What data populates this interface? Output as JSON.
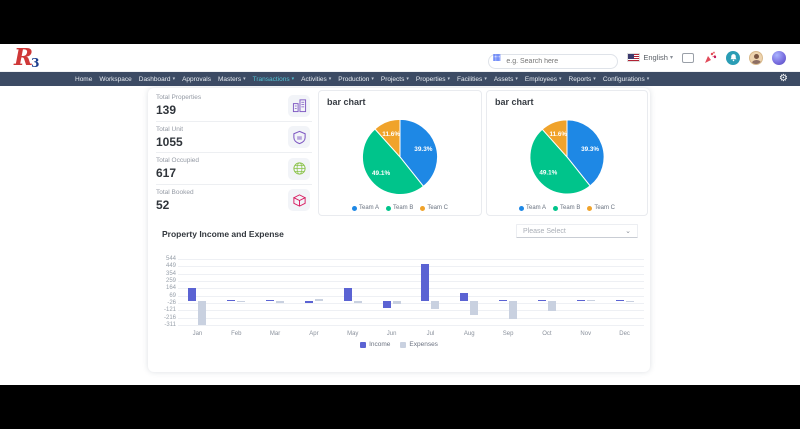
{
  "app": {
    "logo_r": "R",
    "logo_3": "3"
  },
  "header": {
    "search_placeholder": "e.g. Search here",
    "language": "English"
  },
  "nav": {
    "items": [
      {
        "label": "Home",
        "caret": false,
        "active": false
      },
      {
        "label": "Workspace",
        "caret": false,
        "active": false
      },
      {
        "label": "Dashboard",
        "caret": true,
        "active": false
      },
      {
        "label": "Approvals",
        "caret": false,
        "active": false
      },
      {
        "label": "Masters",
        "caret": true,
        "active": false
      },
      {
        "label": "Transactions",
        "caret": true,
        "active": true
      },
      {
        "label": "Activities",
        "caret": true,
        "active": false
      },
      {
        "label": "Production",
        "caret": true,
        "active": false
      },
      {
        "label": "Projects",
        "caret": true,
        "active": false
      },
      {
        "label": "Properties",
        "caret": true,
        "active": false
      },
      {
        "label": "Facilities",
        "caret": true,
        "active": false
      },
      {
        "label": "Assets",
        "caret": true,
        "active": false
      },
      {
        "label": "Employees",
        "caret": true,
        "active": false
      },
      {
        "label": "Reports",
        "caret": true,
        "active": false
      },
      {
        "label": "Configurations",
        "caret": true,
        "active": false
      }
    ]
  },
  "stats": [
    {
      "label": "Total Properties",
      "value": "139",
      "icon": "building-icon",
      "color": "#7e57c2"
    },
    {
      "label": "Total Unit",
      "value": "1055",
      "icon": "units-icon",
      "color": "#7e57c2"
    },
    {
      "label": "Total Occupied",
      "value": "617",
      "icon": "globe-icon",
      "color": "#8bc34a"
    },
    {
      "label": "Total Booked",
      "value": "52",
      "icon": "package-icon",
      "color": "#d81b60"
    }
  ],
  "income_expense": {
    "title": "Property Income and Expense",
    "select_placeholder": "Please Select"
  },
  "chart_data": [
    {
      "type": "pie",
      "title": "bar chart",
      "labels": [
        "Team A",
        "Team B",
        "Team C"
      ],
      "values": [
        44,
        55,
        13
      ],
      "percent_labels": [
        "39.3%",
        "49.1%",
        "11.6%"
      ],
      "colors": [
        "#1e88e5",
        "#00c48b",
        "#f0a32b"
      ],
      "legend_position": "bottom"
    },
    {
      "type": "pie",
      "title": "bar chart",
      "labels": [
        "Team A",
        "Team B",
        "Team C"
      ],
      "values": [
        44,
        55,
        13
      ],
      "percent_labels": [
        "39.3%",
        "49.1%",
        "11.6%"
      ],
      "colors": [
        "#1e88e5",
        "#00c48b",
        "#f0a32b"
      ],
      "legend_position": "bottom"
    },
    {
      "type": "bar",
      "title": "Property Income and Expense",
      "categories": [
        "Jan",
        "Feb",
        "Mar",
        "Apr",
        "May",
        "Jun",
        "Jul",
        "Aug",
        "Sep",
        "Oct",
        "Nov",
        "Dec"
      ],
      "series": [
        {
          "name": "Income",
          "color": "#5b63d3",
          "values": [
            170,
            4,
            4,
            -28,
            168,
            -88,
            478,
            108,
            12,
            2,
            2,
            2
          ]
        },
        {
          "name": "Expenses",
          "color": "#c9d1e0",
          "values": [
            -312,
            -6,
            -26,
            30,
            -26,
            -36,
            -108,
            -178,
            -228,
            -128,
            2,
            -2
          ]
        }
      ],
      "yticks": [
        544,
        449,
        354,
        259,
        164,
        69,
        -26,
        -121,
        -216,
        -311
      ],
      "ylim": [
        -311,
        544
      ],
      "grid": true,
      "legend_position": "bottom-center"
    }
  ],
  "colors": {
    "navbar_bg": "#3c4b64",
    "nav_active": "#53c2d4",
    "income_bar": "#5b63d3",
    "expense_bar": "#c9d1e0"
  }
}
